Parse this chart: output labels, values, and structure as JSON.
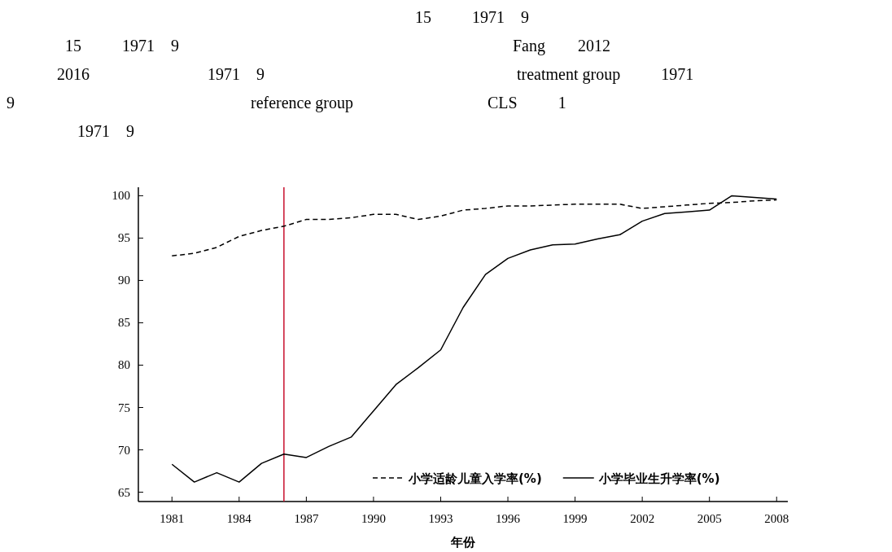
{
  "chart_data": {
    "type": "line",
    "annotations": [
      "15          1971    9",
      "15          1971    9                                                                                  Fang        2012",
      "2016                             1971    9                                                              treatment group          1971",
      "9                                                          reference group                                 CLS          1",
      "1971    9"
    ],
    "xlabel": "年份",
    "x": [
      1981,
      1982,
      1983,
      1984,
      1985,
      1986,
      1987,
      1988,
      1989,
      1990,
      1991,
      1992,
      1993,
      1994,
      1995,
      1996,
      1997,
      1998,
      1999,
      2000,
      2001,
      2002,
      2003,
      2004,
      2005,
      2006,
      2007,
      2008
    ],
    "series": [
      {
        "name": "小学适龄儿童入学率(%)",
        "color": "#000000",
        "line_style": "dashed",
        "values": [
          92.9,
          93.2,
          93.9,
          95.2,
          95.9,
          96.4,
          97.2,
          97.2,
          97.4,
          97.8,
          97.8,
          97.2,
          97.6,
          98.3,
          98.5,
          98.8,
          98.8,
          98.9,
          99.0,
          99.0,
          99.0,
          98.5,
          98.7,
          98.9,
          99.1,
          99.2,
          99.4,
          99.5
        ]
      },
      {
        "name": "小学毕业生升学率(%)",
        "color": "#000000",
        "line_style": "solid",
        "values": [
          68.3,
          66.2,
          67.3,
          66.2,
          68.4,
          69.5,
          69.1,
          70.4,
          71.5,
          74.6,
          77.7,
          79.7,
          81.8,
          86.8,
          90.7,
          92.6,
          93.6,
          94.2,
          94.3,
          94.9,
          95.4,
          97.0,
          97.9,
          98.1,
          98.3,
          100.0,
          99.8,
          99.6
        ]
      }
    ],
    "xlim": [
      1979.5,
      2008.5
    ],
    "xticks": [
      1981,
      1984,
      1987,
      1990,
      1993,
      1996,
      1999,
      2002,
      2005,
      2008
    ],
    "ylim": [
      63.9,
      101
    ],
    "yticks": [
      65,
      70,
      75,
      80,
      85,
      90,
      95,
      100
    ],
    "ref_lines": [
      {
        "axis": "x",
        "value": 1986,
        "color": "#c8102e"
      }
    ],
    "grid": false,
    "legend": "bottom right",
    "marker": "none"
  }
}
